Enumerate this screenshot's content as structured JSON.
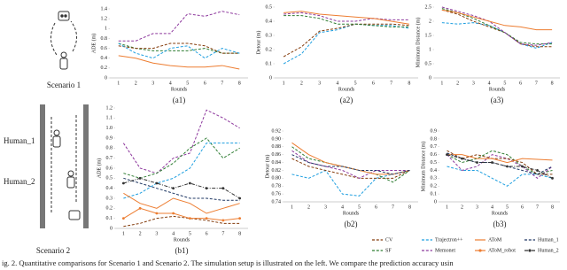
{
  "scenarios": [
    {
      "label": "Scenario 1"
    },
    {
      "label": "Scenario 2",
      "humans": [
        "Human_1",
        "Human_2"
      ]
    }
  ],
  "legend": [
    {
      "name": "CV",
      "color": "#843c0c",
      "dash": "dashed"
    },
    {
      "name": "SF",
      "color": "#2e7d32",
      "dash": "dashed"
    },
    {
      "name": "Trajectron++",
      "color": "#1f9fe0",
      "dash": "dashed"
    },
    {
      "name": "Memonet",
      "color": "#8e3a9e",
      "dash": "dashed"
    },
    {
      "name": "AToM",
      "color": "#ed7d31",
      "dash": "solid"
    },
    {
      "name": "AToM_robot",
      "color": "#ed7d31",
      "dash": "solid",
      "marker": "circle"
    },
    {
      "name": "Human_1",
      "color": "#203864",
      "dash": "dashed"
    },
    {
      "name": "Human_2",
      "color": "#333333",
      "dash": "dashdot",
      "marker": "circle"
    }
  ],
  "caption": "ig. 2.   Quantitative comparisons for Scenario 1 and Scenario 2. The simulation setup is illustrated on the left. We compare the prediction accuracy usin",
  "chart_data": [
    {
      "type": "line",
      "label": "(a1)",
      "xlabel": "Rounds",
      "ylabel": "ADE (m)",
      "categories": [
        "1",
        "2",
        "3",
        "4",
        "5",
        "6",
        "7",
        "8"
      ],
      "ylim": [
        0,
        1.4
      ],
      "yticks": [
        0,
        0.2,
        0.4,
        0.6,
        0.8,
        1,
        1.2,
        1.4
      ],
      "series": [
        {
          "name": "Memonet",
          "values": [
            0.75,
            0.75,
            0.9,
            0.9,
            1.3,
            1.25,
            1.35,
            1.28
          ]
        },
        {
          "name": "SF",
          "values": [
            0.7,
            0.6,
            0.55,
            0.55,
            0.55,
            0.6,
            0.5,
            0.5
          ]
        },
        {
          "name": "CV",
          "values": [
            0.65,
            0.6,
            0.6,
            0.7,
            0.7,
            0.65,
            0.5,
            0.5
          ]
        },
        {
          "name": "Trajectron++",
          "values": [
            0.7,
            0.5,
            0.4,
            0.6,
            0.65,
            0.4,
            0.6,
            0.5
          ]
        },
        {
          "name": "AToM",
          "values": [
            0.45,
            0.4,
            0.3,
            0.25,
            0.22,
            0.22,
            0.25,
            0.18
          ]
        }
      ]
    },
    {
      "type": "line",
      "label": "(a2)",
      "xlabel": "Rounds",
      "ylabel": "Detour (m)",
      "categories": [
        "1",
        "2",
        "3",
        "4",
        "5",
        "6",
        "7",
        "8"
      ],
      "ylim": [
        0,
        0.5
      ],
      "yticks": [
        0,
        0.1,
        0.2,
        0.3,
        0.4,
        0.5
      ],
      "series": [
        {
          "name": "Trajectron++",
          "values": [
            0.1,
            0.17,
            0.32,
            0.34,
            0.38,
            0.37,
            0.37,
            0.35
          ]
        },
        {
          "name": "CV",
          "values": [
            0.15,
            0.22,
            0.33,
            0.35,
            0.38,
            0.38,
            0.38,
            0.37
          ]
        },
        {
          "name": "SF",
          "values": [
            0.44,
            0.44,
            0.42,
            0.38,
            0.38,
            0.37,
            0.36,
            0.36
          ]
        },
        {
          "name": "Memonet",
          "values": [
            0.45,
            0.46,
            0.44,
            0.4,
            0.4,
            0.42,
            0.41,
            0.41
          ]
        },
        {
          "name": "AToM",
          "values": [
            0.46,
            0.47,
            0.45,
            0.44,
            0.43,
            0.42,
            0.4,
            0.38
          ]
        }
      ]
    },
    {
      "type": "line",
      "label": "(a3)",
      "xlabel": "Rounds",
      "ylabel": "Minimum Distance (m)",
      "categories": [
        "1",
        "2",
        "3",
        "4",
        "5",
        "6",
        "7",
        "8"
      ],
      "ylim": [
        0,
        2.5
      ],
      "yticks": [
        0,
        0.5,
        1,
        1.5,
        2,
        2.5
      ],
      "series": [
        {
          "name": "Trajectron++",
          "values": [
            1.95,
            1.9,
            1.95,
            1.85,
            1.6,
            1.2,
            1.05,
            1.25
          ]
        },
        {
          "name": "CV",
          "values": [
            2.4,
            2.25,
            2.0,
            1.8,
            1.6,
            1.2,
            1.1,
            1.1
          ]
        },
        {
          "name": "SF",
          "values": [
            2.45,
            2.3,
            2.1,
            1.85,
            1.6,
            1.25,
            1.2,
            1.2
          ]
        },
        {
          "name": "Memonet",
          "values": [
            2.5,
            2.35,
            2.2,
            2.0,
            1.6,
            1.2,
            1.15,
            1.25
          ]
        },
        {
          "name": "AToM",
          "values": [
            2.4,
            2.3,
            2.15,
            2.0,
            1.85,
            1.8,
            1.7,
            1.7
          ]
        }
      ]
    },
    {
      "type": "line",
      "label": "(b1)",
      "xlabel": "Rounds",
      "ylabel": "ADE (m)",
      "categories": [
        "1",
        "2",
        "3",
        "4",
        "5",
        "6",
        "7",
        "8"
      ],
      "ylim": [
        0,
        1.2
      ],
      "yticks": [
        0,
        0.1,
        0.2,
        0.3,
        0.4,
        0.5,
        0.6,
        0.7,
        0.8,
        0.9,
        {
          "value": 1,
          "label": "1.0"
        },
        1.1,
        1.2
      ],
      "series": [
        {
          "name": "Memonet",
          "values": [
            0.85,
            0.6,
            0.55,
            0.7,
            0.75,
            1.18,
            1.1,
            1.0
          ]
        },
        {
          "name": "SF",
          "values": [
            0.55,
            0.5,
            0.55,
            0.65,
            0.8,
            0.9,
            0.7,
            0.8
          ]
        },
        {
          "name": "Trajectron++",
          "values": [
            0.3,
            0.35,
            0.45,
            0.5,
            0.6,
            0.85,
            0.85,
            0.85
          ]
        },
        {
          "name": "CV",
          "values": [
            0.02,
            0.05,
            0.1,
            0.12,
            0.1,
            0.08,
            0.05,
            0.05
          ]
        },
        {
          "name": "AToM",
          "values": [
            0.35,
            0.25,
            0.2,
            0.3,
            0.25,
            0.15,
            0.2,
            0.25
          ]
        },
        {
          "name": "AToM_robot",
          "values": [
            0.1,
            0.2,
            0.15,
            0.15,
            0.1,
            0.1,
            0.08,
            0.1
          ]
        },
        {
          "name": "Human_1",
          "values": [
            0.5,
            0.45,
            0.4,
            0.35,
            0.3,
            0.3,
            0.28,
            0.28
          ]
        },
        {
          "name": "Human_2",
          "values": [
            0.45,
            0.5,
            0.45,
            0.4,
            0.45,
            0.4,
            0.4,
            0.3
          ]
        }
      ]
    },
    {
      "type": "line",
      "label": "(b2)",
      "xlabel": "Rounds",
      "ylabel": "Detour (m)",
      "categories": [
        "1",
        "2",
        "3",
        "4",
        "5",
        "6",
        "7",
        "8"
      ],
      "ylim": [
        0.74,
        0.92
      ],
      "yticks": [
        0.74,
        0.76,
        0.78,
        {
          "value": 0.8,
          "label": "0.80"
        },
        0.82,
        0.84,
        0.86,
        0.88,
        {
          "value": 0.9,
          "label": "0.90"
        },
        0.92
      ],
      "series": [
        {
          "name": "Trajectron++",
          "values": [
            0.81,
            0.8,
            0.82,
            0.76,
            0.755,
            0.8,
            0.81,
            0.82
          ]
        },
        {
          "name": "CV",
          "values": [
            0.85,
            0.83,
            0.82,
            0.81,
            0.8,
            0.8,
            0.8,
            0.82
          ]
        },
        {
          "name": "SF",
          "values": [
            0.88,
            0.85,
            0.84,
            0.83,
            0.82,
            0.81,
            0.79,
            0.82
          ]
        },
        {
          "name": "Memonet",
          "values": [
            0.87,
            0.84,
            0.83,
            0.82,
            0.8,
            0.82,
            0.82,
            0.82
          ]
        },
        {
          "name": "AToM",
          "values": [
            0.89,
            0.86,
            0.84,
            0.83,
            0.82,
            0.81,
            0.81,
            0.82
          ]
        },
        {
          "name": "Human_1",
          "values": [
            0.86,
            0.84,
            0.83,
            0.83,
            0.82,
            0.82,
            0.81,
            0.82
          ]
        }
      ]
    },
    {
      "type": "line",
      "label": "(b3)",
      "xlabel": "Rounds",
      "ylabel": "Minimum Distance (m)",
      "categories": [
        "1",
        "2",
        "3",
        "4",
        "5",
        "6",
        "7",
        "8"
      ],
      "ylim": [
        0,
        0.9
      ],
      "yticks": [
        0,
        0.1,
        0.2,
        0.3,
        0.4,
        0.5,
        0.6,
        0.7,
        0.8,
        0.9
      ],
      "series": [
        {
          "name": "Trajectron++",
          "values": [
            0.45,
            0.4,
            0.4,
            0.3,
            0.2,
            0.35,
            0.35,
            0.3
          ]
        },
        {
          "name": "SF",
          "values": [
            0.6,
            0.5,
            0.55,
            0.65,
            0.6,
            0.45,
            0.35,
            0.4
          ]
        },
        {
          "name": "Memonet",
          "values": [
            0.6,
            0.4,
            0.45,
            0.6,
            0.55,
            0.45,
            0.3,
            0.45
          ]
        },
        {
          "name": "CV",
          "values": [
            0.65,
            0.55,
            0.6,
            0.55,
            0.55,
            0.5,
            0.35,
            0.35
          ]
        },
        {
          "name": "AToM",
          "values": [
            0.6,
            0.6,
            0.55,
            0.55,
            0.5,
            0.55,
            0.54,
            0.53
          ]
        },
        {
          "name": "Human_1",
          "values": [
            0.62,
            0.55,
            0.5,
            0.5,
            0.45,
            0.4,
            0.35,
            0.45
          ]
        },
        {
          "name": "Human_2",
          "values": [
            0.6,
            0.55,
            0.5,
            0.5,
            0.45,
            0.45,
            0.4,
            0.3
          ]
        }
      ]
    }
  ]
}
